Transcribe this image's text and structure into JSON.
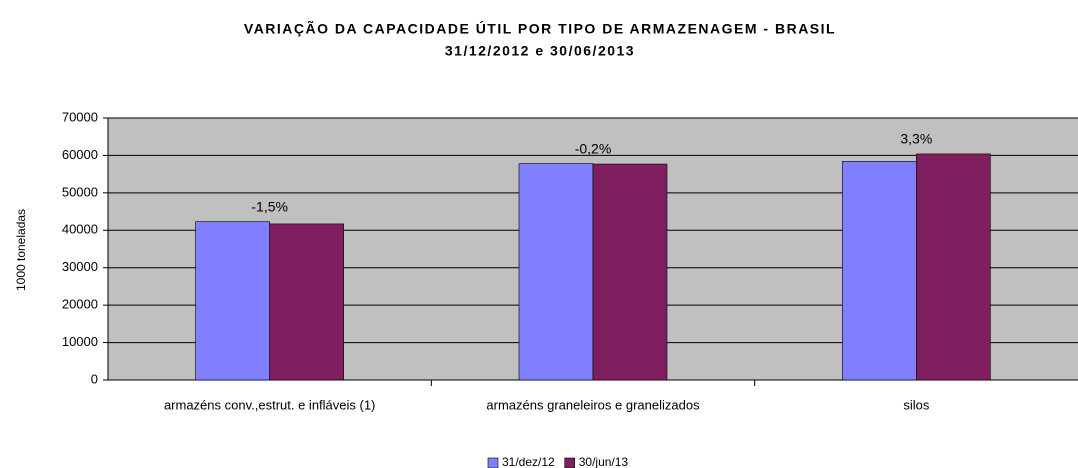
{
  "chart_data": {
    "type": "bar",
    "title": "VARIAÇÃO DA CAPACIDADE ÚTIL POR TIPO DE ARMAZENAGEM - BRASIL",
    "subtitle": "31/12/2012 e 30/06/2013",
    "y_label": "1000 toneladas",
    "categories": [
      "armazéns conv.,estrut. e infláveis (1)",
      "armazéns graneleiros e granelizados",
      "silos"
    ],
    "annotations": [
      "-1,5%",
      "-0,2%",
      "3,3%"
    ],
    "series": [
      {
        "name": "31/dez/12",
        "color": "#8080ff",
        "values": [
          42300,
          57800,
          58400
        ]
      },
      {
        "name": "30/jun/13",
        "color": "#7f1f5f",
        "values": [
          41700,
          57700,
          60400
        ]
      }
    ],
    "ylim": [
      0,
      70000
    ],
    "yticks": [
      0,
      10000,
      20000,
      30000,
      40000,
      50000,
      60000,
      70000
    ],
    "grid": true,
    "legend": "bottom"
  }
}
